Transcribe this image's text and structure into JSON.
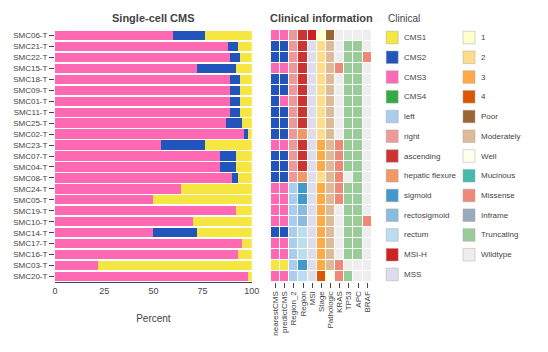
{
  "chart_data": [
    {
      "type": "bar",
      "title": "Single-cell CMS",
      "orientation": "horizontal",
      "stacked": true,
      "xlabel": "Percent",
      "categories": [
        "SMC06-T",
        "SMC21-T",
        "SMC22-T",
        "SMC15-T",
        "SMC18-T",
        "SMC09-T",
        "SMC01-T",
        "SMC11-T",
        "SMC25-T",
        "SMC02-T",
        "SMC23-T",
        "SMC07-T",
        "SMC04-T",
        "SMC08-T",
        "SMC24-T",
        "SMC05-T",
        "SMC19-T",
        "SMC10-T",
        "SMC14-T",
        "SMC17-T",
        "SMC16-T",
        "SMC03-T",
        "SMC20-T"
      ],
      "series": [
        {
          "name": "CMS3",
          "color": "#FF69B4",
          "values": [
            60,
            88,
            89,
            72,
            89,
            89,
            89,
            89,
            87,
            96,
            54,
            84,
            84,
            90,
            64,
            50,
            92,
            70,
            50,
            95,
            93,
            22,
            98
          ]
        },
        {
          "name": "CMS2",
          "color": "#2255BB",
          "values": [
            16,
            5,
            5,
            20,
            5,
            5,
            5,
            5,
            8,
            2,
            22,
            8,
            8,
            3,
            0,
            0,
            0,
            0,
            22,
            0,
            0,
            0,
            0
          ]
        },
        {
          "name": "CMS1",
          "color": "#F5E642",
          "values": [
            24,
            7,
            6,
            8,
            6,
            6,
            6,
            6,
            5,
            2,
            24,
            8,
            8,
            7,
            36,
            50,
            8,
            30,
            28,
            5,
            7,
            78,
            2
          ]
        },
        {
          "name": "CMS4",
          "color": "#33AA44",
          "values": [
            0,
            0,
            0,
            0,
            0,
            0,
            0,
            0,
            0,
            0,
            0,
            0,
            0,
            0,
            0,
            0,
            0,
            0,
            0,
            0,
            0,
            0,
            0
          ]
        }
      ],
      "xlim": [
        0,
        100
      ],
      "xticks": [
        0,
        25,
        50,
        75,
        100
      ],
      "grid": false
    },
    {
      "type": "heatmap",
      "title": "Clinical information",
      "tick_labels": "x",
      "grid": false,
      "series": [
        {
          "name": "nearestCMS",
          "values": [
            "CMS3",
            "CMS2",
            "CMS2",
            "CMS3",
            "CMS2",
            "CMS2",
            "CMS2",
            "CMS2",
            "CMS2",
            "CMS2",
            "CMS3",
            "CMS2",
            "CMS2",
            "CMS2",
            "CMS3",
            "CMS3",
            "CMS3",
            "CMS3",
            "CMS2",
            "CMS3",
            "CMS3",
            "CMS1",
            "CMS3"
          ]
        },
        {
          "name": "predictCMS",
          "values": [
            "CMS3",
            "CMS2",
            "CMS2",
            "CMS3",
            "CMS2",
            "CMS2",
            "CMS3",
            "CMS2",
            "CMS2",
            "CMS2",
            "CMS3",
            "CMS2",
            "CMS2",
            "CMS2",
            "CMS3",
            "CMS3",
            "CMS3",
            "CMS3",
            "CMS2",
            "CMS3",
            "CMS3",
            "CMS1",
            "CMS3"
          ]
        },
        {
          "name": "Region_2",
          "values": [
            "right",
            "right",
            "right",
            "right",
            "right",
            "right",
            "right",
            "right",
            "right",
            "right",
            "right",
            "right",
            "right",
            "right",
            "left",
            "left",
            "left",
            "left",
            "left",
            "left",
            "left",
            "left",
            "left"
          ]
        },
        {
          "name": "Region",
          "values": [
            "ascending",
            "ascending",
            "ascending",
            "ascending",
            "ascending",
            "ascending",
            "ascending",
            "ascending",
            "ascending",
            "hepatic flexure",
            "ascending",
            "ascending",
            "ascending",
            "hepatic flexure",
            "sigmoid",
            "sigmoid",
            "rectosigmoid",
            "rectosigmoid",
            "rectum",
            "rectum",
            "rectum",
            "sigmoid",
            "rectum"
          ]
        },
        {
          "name": "MSI",
          "values": [
            "MSI-H",
            "MSS",
            "MSS",
            "MSS",
            "MSS",
            "MSS",
            "MSS",
            "MSS",
            "MSS",
            "MSS",
            "MSS",
            "MSS",
            "MSS",
            "MSS",
            "MSS",
            "MSS",
            "MSS",
            "MSS",
            "MSS",
            "MSS",
            "MSS",
            "MSS",
            "MSS"
          ]
        },
        {
          "name": "Stage",
          "values": [
            "1",
            "2",
            "2",
            "2",
            "2",
            "2",
            "2",
            "2",
            "2",
            "2",
            "3",
            "3",
            "3",
            "2",
            "3",
            "3",
            "3",
            "3",
            "3",
            "3",
            "3",
            "3",
            "4"
          ]
        },
        {
          "name": "Pathologic",
          "values": [
            "Poor",
            "Moderately",
            "Moderately",
            "Moderately",
            "Moderately",
            "Moderately",
            "Moderately",
            "Moderately",
            "Moderately",
            "Moderately",
            "Moderately",
            "Moderately",
            "Moderately",
            "Moderately",
            "Moderately",
            "Moderately",
            "Moderately",
            "Moderately",
            "Moderately",
            "Moderately",
            "Moderately",
            "Moderately",
            "Well"
          ]
        },
        {
          "name": "KRAS",
          "values": [
            "Wildtype",
            "Wildtype",
            "Wildtype",
            "Missense",
            "Wildtype",
            "Wildtype",
            "Wildtype",
            "Wildtype",
            "Wildtype",
            "Wildtype",
            "Missense",
            "Missense",
            "Missense",
            "Missense",
            "Missense",
            "Missense",
            "Wildtype",
            "Wildtype",
            "Wildtype",
            "Wildtype",
            "Wildtype",
            "Missense",
            "Missense"
          ]
        },
        {
          "name": "TP53",
          "values": [
            "Wildtype",
            "Truncating",
            "Truncating",
            "Truncating",
            "Truncating",
            "Truncating",
            "Truncating",
            "Truncating",
            "Truncating",
            "Truncating",
            "Truncating",
            "Truncating",
            "Truncating",
            "Wildtype",
            "Truncating",
            "Truncating",
            "Truncating",
            "Truncating",
            "Truncating",
            "Truncating",
            "Truncating",
            "Wildtype",
            "Truncating"
          ]
        },
        {
          "name": "APC",
          "values": [
            "Wildtype",
            "Truncating",
            "Truncating",
            "Truncating",
            "Truncating",
            "Truncating",
            "Truncating",
            "Truncating",
            "Truncating",
            "Truncating",
            "Truncating",
            "Truncating",
            "Truncating",
            "Truncating",
            "Truncating",
            "Truncating",
            "Truncating",
            "Truncating",
            "Truncating",
            "Truncating",
            "Truncating",
            "Wildtype",
            "Wildtype"
          ]
        },
        {
          "name": "BRAF",
          "values": [
            "Wildtype",
            "Wildtype",
            "Missense",
            "Wildtype",
            "Wildtype",
            "Wildtype",
            "Wildtype",
            "Wildtype",
            "Wildtype",
            "Wildtype",
            "Wildtype",
            "Wildtype",
            "Wildtype",
            "Wildtype",
            "Wildtype",
            "Wildtype",
            "Wildtype",
            "Missense",
            "Wildtype",
            "Wildtype",
            "Wildtype",
            "Wildtype",
            "Wildtype"
          ]
        }
      ],
      "legend_title": "Clinical",
      "legend_items": [
        [
          {
            "name": "CMS1",
            "color": "#F5E642"
          },
          {
            "name": "CMS2",
            "color": "#2255BB"
          },
          {
            "name": "CMS3",
            "color": "#FF69B4"
          },
          {
            "name": "CMS4",
            "color": "#33AA44"
          },
          {
            "name": "left",
            "color": "#AACCEE"
          },
          {
            "name": "right",
            "color": "#EE9999"
          },
          {
            "name": "ascending",
            "color": "#CC3333"
          },
          {
            "name": "hepatic flexure",
            "color": "#EE9966"
          },
          {
            "name": "sigmoid",
            "color": "#4499CC"
          },
          {
            "name": "rectosigmoid",
            "color": "#88BBDD"
          },
          {
            "name": "rectum",
            "color": "#BBDDEE"
          },
          {
            "name": "MSI-H",
            "color": "#CC2222"
          },
          {
            "name": "MSS",
            "color": "#DDDDEE"
          }
        ],
        [
          {
            "name": "1",
            "color": "#FFFFCC"
          },
          {
            "name": "2",
            "color": "#FFDD88"
          },
          {
            "name": "3",
            "color": "#FFAA44"
          },
          {
            "name": "4",
            "color": "#DD5500"
          },
          {
            "name": "Poor",
            "color": "#996633"
          },
          {
            "name": "Moderately",
            "color": "#DDBB99"
          },
          {
            "name": "Well",
            "color": "#FFFFEE"
          },
          {
            "name": "Mucinous",
            "color": "#44BBAA"
          },
          {
            "name": "Missense",
            "color": "#EE8877"
          },
          {
            "name": "Inframe",
            "color": "#99AABB"
          },
          {
            "name": "Truncating",
            "color": "#99CC99"
          },
          {
            "name": "Wildtype",
            "color": "#EEEEEE"
          }
        ]
      ]
    }
  ]
}
